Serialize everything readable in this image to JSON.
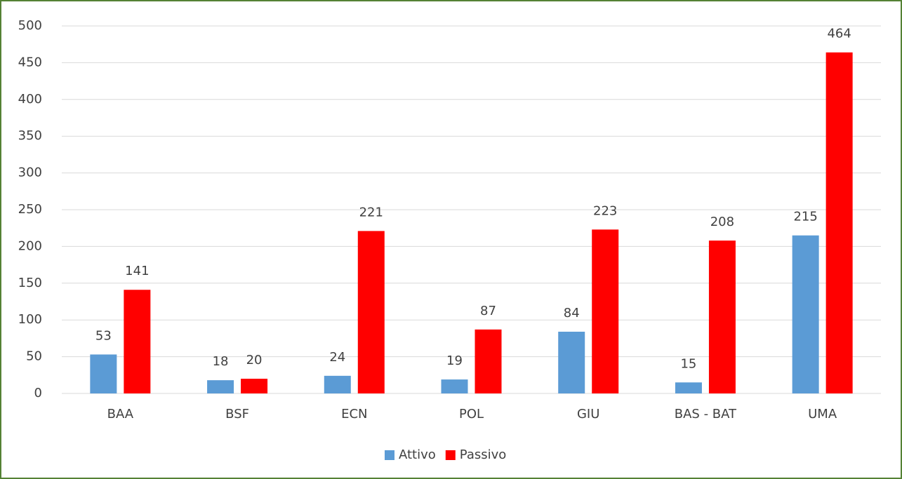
{
  "chart_data": {
    "type": "bar",
    "categories": [
      "BAA",
      "BSF",
      "ECN",
      "POL",
      "GIU",
      "BAS - BAT",
      "UMA"
    ],
    "series": [
      {
        "name": "Attivo",
        "color": "#5b9bd5",
        "values": [
          53,
          18,
          24,
          19,
          84,
          15,
          215
        ]
      },
      {
        "name": "Passivo",
        "color": "#ff0000",
        "values": [
          141,
          20,
          221,
          87,
          223,
          208,
          464
        ]
      }
    ],
    "ylim": [
      0,
      500
    ],
    "yticks": [
      0,
      50,
      100,
      150,
      200,
      250,
      300,
      350,
      400,
      450,
      500
    ],
    "grid": true,
    "legend": "bottom",
    "data_labels": true
  }
}
